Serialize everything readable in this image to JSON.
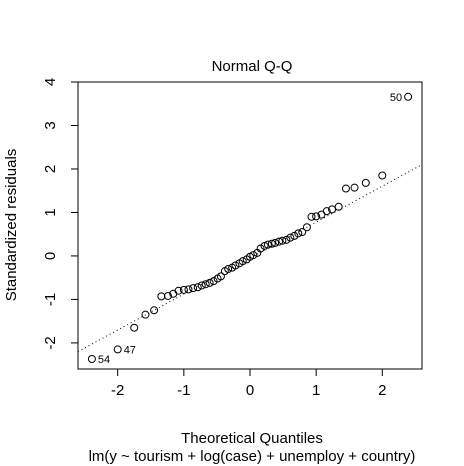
{
  "chart_data": {
    "type": "scatter",
    "title": "Normal Q-Q",
    "xlabel": "Theoretical Quantiles",
    "subtitle": "lm(y ~ tourism + log(case) + unemploy + country)",
    "ylabel": "Standardized residuals",
    "xlim": [
      -2.6,
      2.6
    ],
    "ylim": [
      -2.6,
      4.0
    ],
    "x_ticks": [
      -2,
      -1,
      0,
      1,
      2
    ],
    "x_tick_labels": [
      "-2",
      "-1",
      "0",
      "1",
      "2"
    ],
    "y_ticks": [
      -2,
      -1,
      0,
      1,
      2,
      3,
      4
    ],
    "y_tick_labels": [
      "-2",
      "-1",
      "0",
      "1",
      "2",
      "3",
      "4"
    ],
    "grid": false,
    "reference_line": {
      "style": "dotted",
      "points": [
        [
          -2.6,
          -2.2
        ],
        [
          2.6,
          2.1
        ]
      ]
    },
    "points": [
      {
        "x": -2.39,
        "y": -2.37
      },
      {
        "x": -2.0,
        "y": -2.15
      },
      {
        "x": -1.75,
        "y": -1.65
      },
      {
        "x": -1.58,
        "y": -1.35
      },
      {
        "x": -1.45,
        "y": -1.25
      },
      {
        "x": -1.34,
        "y": -0.93
      },
      {
        "x": -1.24,
        "y": -0.92
      },
      {
        "x": -1.16,
        "y": -0.87
      },
      {
        "x": -1.08,
        "y": -0.8
      },
      {
        "x": -1.0,
        "y": -0.78
      },
      {
        "x": -0.93,
        "y": -0.77
      },
      {
        "x": -0.86,
        "y": -0.74
      },
      {
        "x": -0.79,
        "y": -0.72
      },
      {
        "x": -0.73,
        "y": -0.68
      },
      {
        "x": -0.67,
        "y": -0.65
      },
      {
        "x": -0.61,
        "y": -0.62
      },
      {
        "x": -0.55,
        "y": -0.58
      },
      {
        "x": -0.49,
        "y": -0.52
      },
      {
        "x": -0.44,
        "y": -0.47
      },
      {
        "x": -0.38,
        "y": -0.35
      },
      {
        "x": -0.33,
        "y": -0.3
      },
      {
        "x": -0.27,
        "y": -0.27
      },
      {
        "x": -0.22,
        "y": -0.22
      },
      {
        "x": -0.16,
        "y": -0.17
      },
      {
        "x": -0.11,
        "y": -0.12
      },
      {
        "x": -0.05,
        "y": -0.08
      },
      {
        "x": 0.0,
        "y": -0.02
      },
      {
        "x": 0.05,
        "y": 0.02
      },
      {
        "x": 0.11,
        "y": 0.07
      },
      {
        "x": 0.16,
        "y": 0.17
      },
      {
        "x": 0.22,
        "y": 0.23
      },
      {
        "x": 0.27,
        "y": 0.26
      },
      {
        "x": 0.33,
        "y": 0.28
      },
      {
        "x": 0.38,
        "y": 0.3
      },
      {
        "x": 0.44,
        "y": 0.33
      },
      {
        "x": 0.49,
        "y": 0.35
      },
      {
        "x": 0.55,
        "y": 0.37
      },
      {
        "x": 0.61,
        "y": 0.42
      },
      {
        "x": 0.67,
        "y": 0.46
      },
      {
        "x": 0.73,
        "y": 0.52
      },
      {
        "x": 0.79,
        "y": 0.55
      },
      {
        "x": 0.86,
        "y": 0.66
      },
      {
        "x": 0.93,
        "y": 0.9
      },
      {
        "x": 1.0,
        "y": 0.91
      },
      {
        "x": 1.08,
        "y": 0.95
      },
      {
        "x": 1.16,
        "y": 1.03
      },
      {
        "x": 1.24,
        "y": 1.07
      },
      {
        "x": 1.34,
        "y": 1.13
      },
      {
        "x": 1.45,
        "y": 1.55
      },
      {
        "x": 1.58,
        "y": 1.57
      },
      {
        "x": 1.75,
        "y": 1.68
      },
      {
        "x": 2.0,
        "y": 1.85
      },
      {
        "x": 2.39,
        "y": 3.66
      }
    ],
    "annotations": [
      {
        "text": "50",
        "x": 2.39,
        "y": 3.66,
        "side": "left"
      },
      {
        "text": "47",
        "x": -2.0,
        "y": -2.15,
        "side": "right"
      },
      {
        "text": "54",
        "x": -2.39,
        "y": -2.37,
        "side": "right"
      }
    ]
  }
}
